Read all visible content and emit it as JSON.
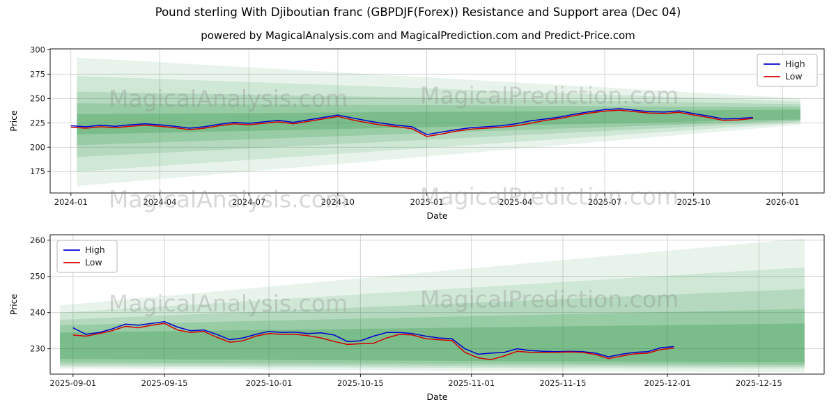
{
  "figure": {
    "title": "Pound sterling With Djiboutian franc (GBPDJF(Forex)) Resistance and Support area (Dec 04)",
    "subtitle": "powered by MagicalAnalysis.com and MagicalPrediction.com and Predict-Price.com",
    "colors": {
      "high_line": "#0000cd",
      "low_line": "#d40000",
      "band_green": "#1e8f3a",
      "grid": "#cfcfcf",
      "watermark": "#8a8a8a"
    }
  },
  "chart_data": [
    {
      "name": "main-forecast-chart",
      "type": "line",
      "xlabel": "Date",
      "ylabel": "Price",
      "xlim": [
        -0.7,
        25.4
      ],
      "ylim": [
        153,
        301
      ],
      "grid": true,
      "legend_loc": "upper right",
      "band_color": "#1e8f3a",
      "xticks": [
        {
          "pos": 0,
          "label": "2024-01"
        },
        {
          "pos": 3,
          "label": "2024-04"
        },
        {
          "pos": 6,
          "label": "2024-07"
        },
        {
          "pos": 9,
          "label": "2024-10"
        },
        {
          "pos": 12,
          "label": "2025-01"
        },
        {
          "pos": 15,
          "label": "2025-04"
        },
        {
          "pos": 18,
          "label": "2025-07"
        },
        {
          "pos": 21,
          "label": "2025-10"
        },
        {
          "pos": 24,
          "label": "2026-01"
        }
      ],
      "yticks": [
        175,
        200,
        225,
        250,
        275,
        300
      ],
      "x": [
        0,
        0.5,
        1,
        1.5,
        2,
        2.5,
        3,
        3.5,
        4,
        4.5,
        5,
        5.5,
        6,
        6.5,
        7,
        7.5,
        8,
        8.5,
        9,
        9.5,
        10,
        10.5,
        11,
        11.5,
        12,
        12.5,
        13,
        13.5,
        14,
        14.5,
        15,
        15.5,
        16,
        16.5,
        17,
        17.5,
        18,
        18.5,
        19,
        19.5,
        20,
        20.5,
        21,
        21.5,
        22,
        22.5,
        23
      ],
      "series": [
        {
          "name": "High",
          "color": "#0000cd",
          "values": [
            222,
            221,
            222.5,
            221.5,
            223,
            224,
            223,
            221.5,
            219.5,
            221,
            223.5,
            225.5,
            224.5,
            226,
            227.5,
            225.5,
            228,
            230.5,
            233,
            230,
            227,
            224.5,
            222.5,
            221,
            213,
            215.5,
            218,
            220,
            221,
            222,
            224,
            227,
            229,
            231,
            234,
            236.5,
            238.5,
            239.5,
            238,
            236.5,
            236,
            237.3,
            234.5,
            232,
            229,
            229.5,
            230.5
          ]
        },
        {
          "name": "Low",
          "color": "#d40000",
          "values": [
            220.5,
            219.5,
            221,
            220,
            221.5,
            222.5,
            221.5,
            220,
            218,
            219.5,
            222,
            224,
            223,
            224.5,
            226,
            224,
            226.5,
            229,
            231.5,
            228,
            225,
            222.5,
            221,
            219,
            211,
            213.5,
            216.5,
            218.5,
            219.5,
            220.5,
            222,
            224.5,
            227.5,
            229.5,
            232.5,
            235,
            237,
            238,
            236.5,
            235,
            234.5,
            235.8,
            233,
            230.5,
            227.5,
            228,
            229.5
          ]
        }
      ],
      "bands": [
        {
          "x0": 0.2,
          "x1": 24.6,
          "b0": 160,
          "t0": 292,
          "b1": 223,
          "t1": 250,
          "opacity": 0.1
        },
        {
          "x0": 0.2,
          "x1": 24.6,
          "b0": 175,
          "t0": 273,
          "b1": 225,
          "t1": 247,
          "opacity": 0.12
        },
        {
          "x0": 0.2,
          "x1": 24.6,
          "b0": 190,
          "t0": 257,
          "b1": 226.5,
          "t1": 244,
          "opacity": 0.15
        },
        {
          "x0": 0.2,
          "x1": 24.6,
          "b0": 202,
          "t0": 245,
          "b1": 227.5,
          "t1": 241,
          "opacity": 0.18
        },
        {
          "x0": 0.2,
          "x1": 24.6,
          "b0": 213,
          "t0": 234,
          "b1": 228.5,
          "t1": 238.5,
          "opacity": 0.24
        }
      ],
      "watermarks": [
        {
          "text": "MagicalAnalysis.com",
          "fx": 0.23,
          "fy": 0.4
        },
        {
          "text": "MagicalPrediction.com",
          "fx": 0.645,
          "fy": 0.38
        },
        {
          "text": "MagicalAnalysis.com",
          "fx": 0.23,
          "fy": 1.1
        },
        {
          "text": "MagicalPrediction.com",
          "fx": 0.645,
          "fy": 1.08
        }
      ]
    },
    {
      "name": "recent-forecast-chart",
      "type": "line",
      "xlabel": "Date",
      "ylabel": "Price",
      "xlim": [
        -3.5,
        115
      ],
      "ylim": [
        223,
        261.5
      ],
      "grid": true,
      "legend_loc": "upper left",
      "band_color": "#1e8f3a",
      "xticks": [
        {
          "pos": 0,
          "label": "2025-09-01"
        },
        {
          "pos": 14,
          "label": "2025-09-15"
        },
        {
          "pos": 30,
          "label": "2025-10-01"
        },
        {
          "pos": 44,
          "label": "2025-10-15"
        },
        {
          "pos": 61,
          "label": "2025-11-01"
        },
        {
          "pos": 75,
          "label": "2025-11-15"
        },
        {
          "pos": 91,
          "label": "2025-12-01"
        },
        {
          "pos": 105,
          "label": "2025-12-15"
        }
      ],
      "yticks": [
        230,
        240,
        250,
        260
      ],
      "x": [
        0,
        2,
        4,
        6,
        8,
        10,
        12,
        14,
        16,
        18,
        20,
        22,
        24,
        26,
        28,
        30,
        32,
        34,
        36,
        38,
        40,
        42,
        44,
        46,
        48,
        50,
        52,
        54,
        56,
        58,
        60,
        62,
        64,
        66,
        68,
        70,
        72,
        74,
        76,
        78,
        80,
        82,
        84,
        86,
        88,
        90,
        92
      ],
      "series": [
        {
          "name": "High",
          "color": "#0000cd",
          "values": [
            235.8,
            234,
            234.5,
            235.5,
            236.8,
            236.5,
            237,
            237.5,
            236,
            235,
            235.2,
            234,
            232.5,
            233,
            234,
            234.8,
            234.5,
            234.6,
            234.2,
            234.4,
            233.8,
            232,
            232.2,
            233.5,
            234.5,
            234.5,
            234.2,
            233.5,
            233,
            232.8,
            230,
            228.5,
            228.8,
            229,
            230,
            229.5,
            229.3,
            229.2,
            229.3,
            229.2,
            228.8,
            227.8,
            228.5,
            229,
            229.2,
            230.3,
            230.6
          ]
        },
        {
          "name": "Low",
          "color": "#d40000",
          "values": [
            233.8,
            233.5,
            234.2,
            235,
            236.2,
            235.8,
            236.5,
            237,
            235.2,
            234.5,
            234.8,
            233.2,
            231.8,
            232.2,
            233.5,
            234.2,
            234,
            234,
            233.6,
            233,
            232,
            231.2,
            231.4,
            231.5,
            233,
            234,
            233.8,
            232.8,
            232.5,
            232.3,
            229,
            227.5,
            227,
            228,
            229.3,
            229,
            229,
            229,
            229.1,
            229,
            228.4,
            227.3,
            228,
            228.6,
            228.8,
            229.8,
            230.2
          ]
        }
      ],
      "bands": [
        {
          "x0": -2,
          "x1": 112,
          "b0": 224.5,
          "t0": 242,
          "b1": 223.5,
          "t1": 260.5,
          "opacity": 0.1
        },
        {
          "x0": -2,
          "x1": 112,
          "b0": 225,
          "t0": 240,
          "b1": 224.5,
          "t1": 252.5,
          "opacity": 0.12
        },
        {
          "x0": -2,
          "x1": 112,
          "b0": 225.5,
          "t0": 238,
          "b1": 225,
          "t1": 246.5,
          "opacity": 0.15
        },
        {
          "x0": -2,
          "x1": 112,
          "b0": 226.2,
          "t0": 236.5,
          "b1": 225.5,
          "t1": 241,
          "opacity": 0.18
        },
        {
          "x0": -2,
          "x1": 112,
          "b0": 227.2,
          "t0": 234.5,
          "b1": 226.2,
          "t1": 237,
          "opacity": 0.24
        }
      ],
      "watermarks": [
        {
          "text": "MagicalAnalysis.com",
          "fx": 0.23,
          "fy": 0.55
        },
        {
          "text": "MagicalPrediction.com",
          "fx": 0.645,
          "fy": 0.52
        }
      ]
    }
  ]
}
